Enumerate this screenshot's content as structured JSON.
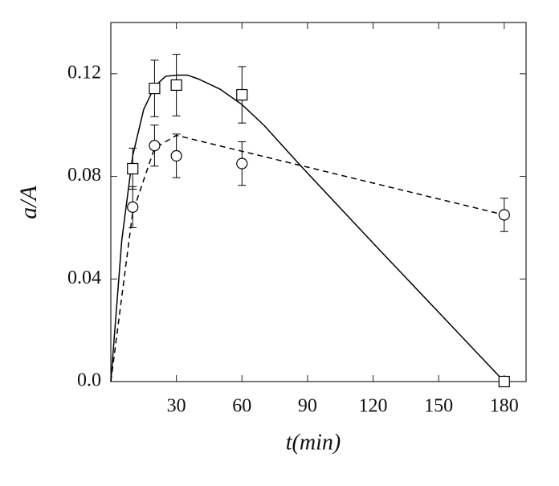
{
  "chart_data": {
    "type": "line",
    "x_label": "t(min)",
    "y_label": "a/A",
    "xlim": [
      0,
      190
    ],
    "ylim": [
      0,
      0.14
    ],
    "xticks": [
      30,
      60,
      90,
      120,
      150,
      180
    ],
    "yticks": [
      {
        "value": 0,
        "label": "0.0"
      },
      0.04,
      0.08,
      0.12
    ],
    "series": [
      {
        "style": "solid",
        "color": "#000000",
        "x": [
          0,
          5,
          10,
          15,
          20,
          25,
          30,
          35,
          40,
          50,
          60,
          70,
          87,
          120,
          150,
          180
        ],
        "values": [
          0,
          0.055,
          0.088,
          0.106,
          0.115,
          0.119,
          0.1195,
          0.1195,
          0.118,
          0.114,
          0.108,
          0.1,
          0.084,
          0.054,
          0.027,
          0
        ]
      },
      {
        "style": "dashed",
        "color": "#000000",
        "x": [
          0,
          10,
          20,
          30,
          180
        ],
        "values": [
          0,
          0.066,
          0.091,
          0.096,
          0.065
        ]
      },
      {
        "style": "points",
        "marker": "square",
        "color": "#000000",
        "x": [
          10,
          20,
          30,
          60,
          180
        ],
        "values": [
          0.083,
          0.1143,
          0.1156,
          0.1118,
          0
        ],
        "errors": [
          0.008,
          0.011,
          0.012,
          0.011,
          null
        ]
      },
      {
        "style": "points",
        "marker": "circle",
        "color": "#000000",
        "x": [
          10,
          20,
          30,
          60,
          180
        ],
        "values": [
          0.068,
          0.092,
          0.088,
          0.085,
          0.065
        ],
        "errors": [
          0.008,
          0.008,
          0.0085,
          0.0085,
          0.0065
        ]
      }
    ]
  }
}
